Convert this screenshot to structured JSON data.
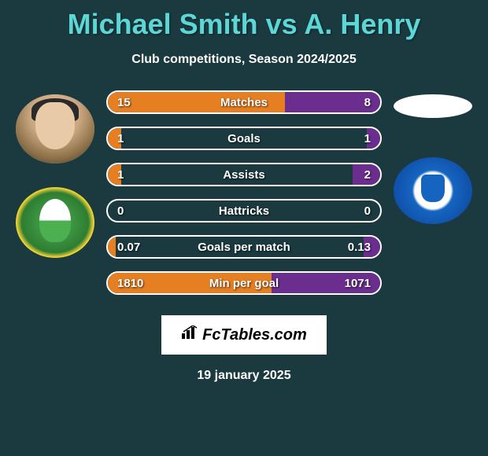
{
  "title": "Michael Smith vs A. Henry",
  "subtitle": "Club competitions, Season 2024/2025",
  "date": "19 january 2025",
  "logo_text": "FcTables.com",
  "colors": {
    "title": "#5dd6d6",
    "background": "#1a3a3f",
    "bar_border": "#ffffff",
    "fill_left": "#e67e22",
    "fill_right": "#6b2e8f",
    "text": "#ffffff"
  },
  "stats": [
    {
      "label": "Matches",
      "left_val": "15",
      "right_val": "8",
      "left_pct": 65,
      "right_pct": 35
    },
    {
      "label": "Goals",
      "left_val": "1",
      "right_val": "1",
      "left_pct": 5,
      "right_pct": 5
    },
    {
      "label": "Assists",
      "left_val": "1",
      "right_val": "2",
      "left_pct": 5,
      "right_pct": 10
    },
    {
      "label": "Hattricks",
      "left_val": "0",
      "right_val": "0",
      "left_pct": 0,
      "right_pct": 0
    },
    {
      "label": "Goals per match",
      "left_val": "0.07",
      "right_val": "0.13",
      "left_pct": 3,
      "right_pct": 6
    },
    {
      "label": "Min per goal",
      "left_val": "1810",
      "right_val": "1071",
      "left_pct": 60,
      "right_pct": 40
    }
  ]
}
